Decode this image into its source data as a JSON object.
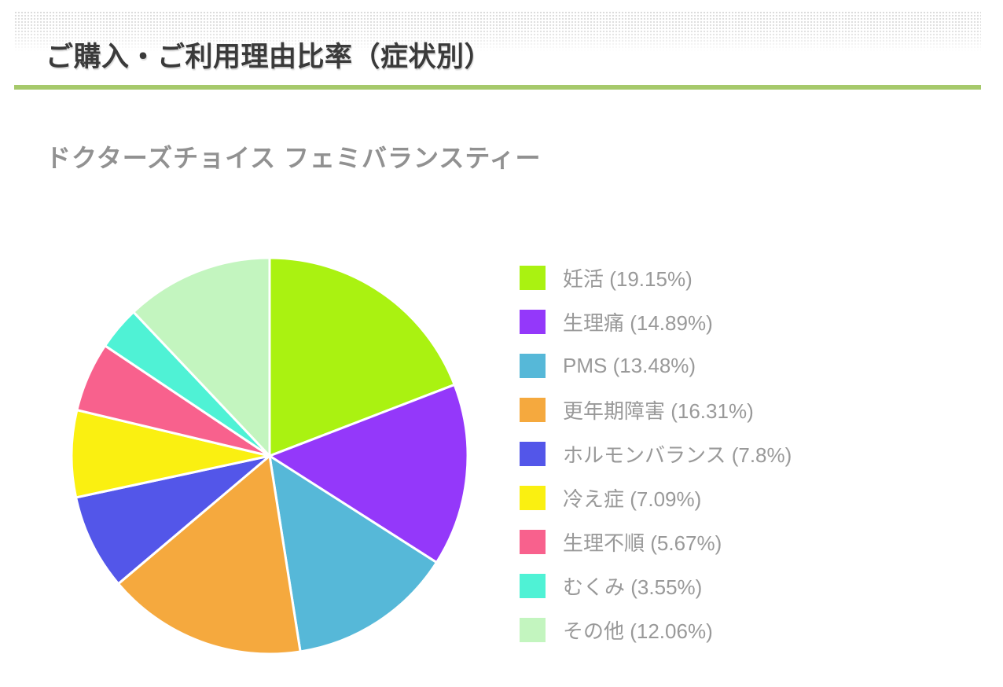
{
  "page": {
    "title": "ご購入・ご利用理由比率（症状別）",
    "subtitle": "ドクターズチョイス フェミバランスティー"
  },
  "colors": {
    "accent_line": "#a6c96b",
    "title_text": "#3a3a3a",
    "subtitle_text": "#919191",
    "legend_text": "#999999",
    "background": "#ffffff",
    "slice_gap": "#ffffff"
  },
  "chart_data": {
    "type": "pie",
    "title": "ドクターズチョイス フェミバランスティー",
    "start_angle_deg": 0,
    "direction": "clockwise",
    "legend_position": "right",
    "total_percent": 100,
    "slices": [
      {
        "label": "妊活",
        "value": 19.15,
        "display": "妊活 (19.15%)",
        "color": "#aaf211"
      },
      {
        "label": "生理痛",
        "value": 14.89,
        "display": "生理痛 (14.89%)",
        "color": "#9438fa"
      },
      {
        "label": "PMS",
        "value": 13.48,
        "display": "PMS (13.48%)",
        "color": "#56b8d8"
      },
      {
        "label": "更年期障害",
        "value": 16.31,
        "display": "更年期障害 (16.31%)",
        "color": "#f5a93e"
      },
      {
        "label": "ホルモンバランス",
        "value": 7.8,
        "display": "ホルモンバランス (7.8%)",
        "color": "#5356e9"
      },
      {
        "label": "冷え症",
        "value": 7.09,
        "display": "冷え症 (7.09%)",
        "color": "#faf011"
      },
      {
        "label": "生理不順",
        "value": 5.67,
        "display": "生理不順 (5.67%)",
        "color": "#f8618d"
      },
      {
        "label": "むくみ",
        "value": 3.55,
        "display": "むくみ (3.55%)",
        "color": "#4ff2d5"
      },
      {
        "label": "その他",
        "value": 12.06,
        "display": "その他 (12.06%)",
        "color": "#c3f5bf"
      }
    ]
  }
}
